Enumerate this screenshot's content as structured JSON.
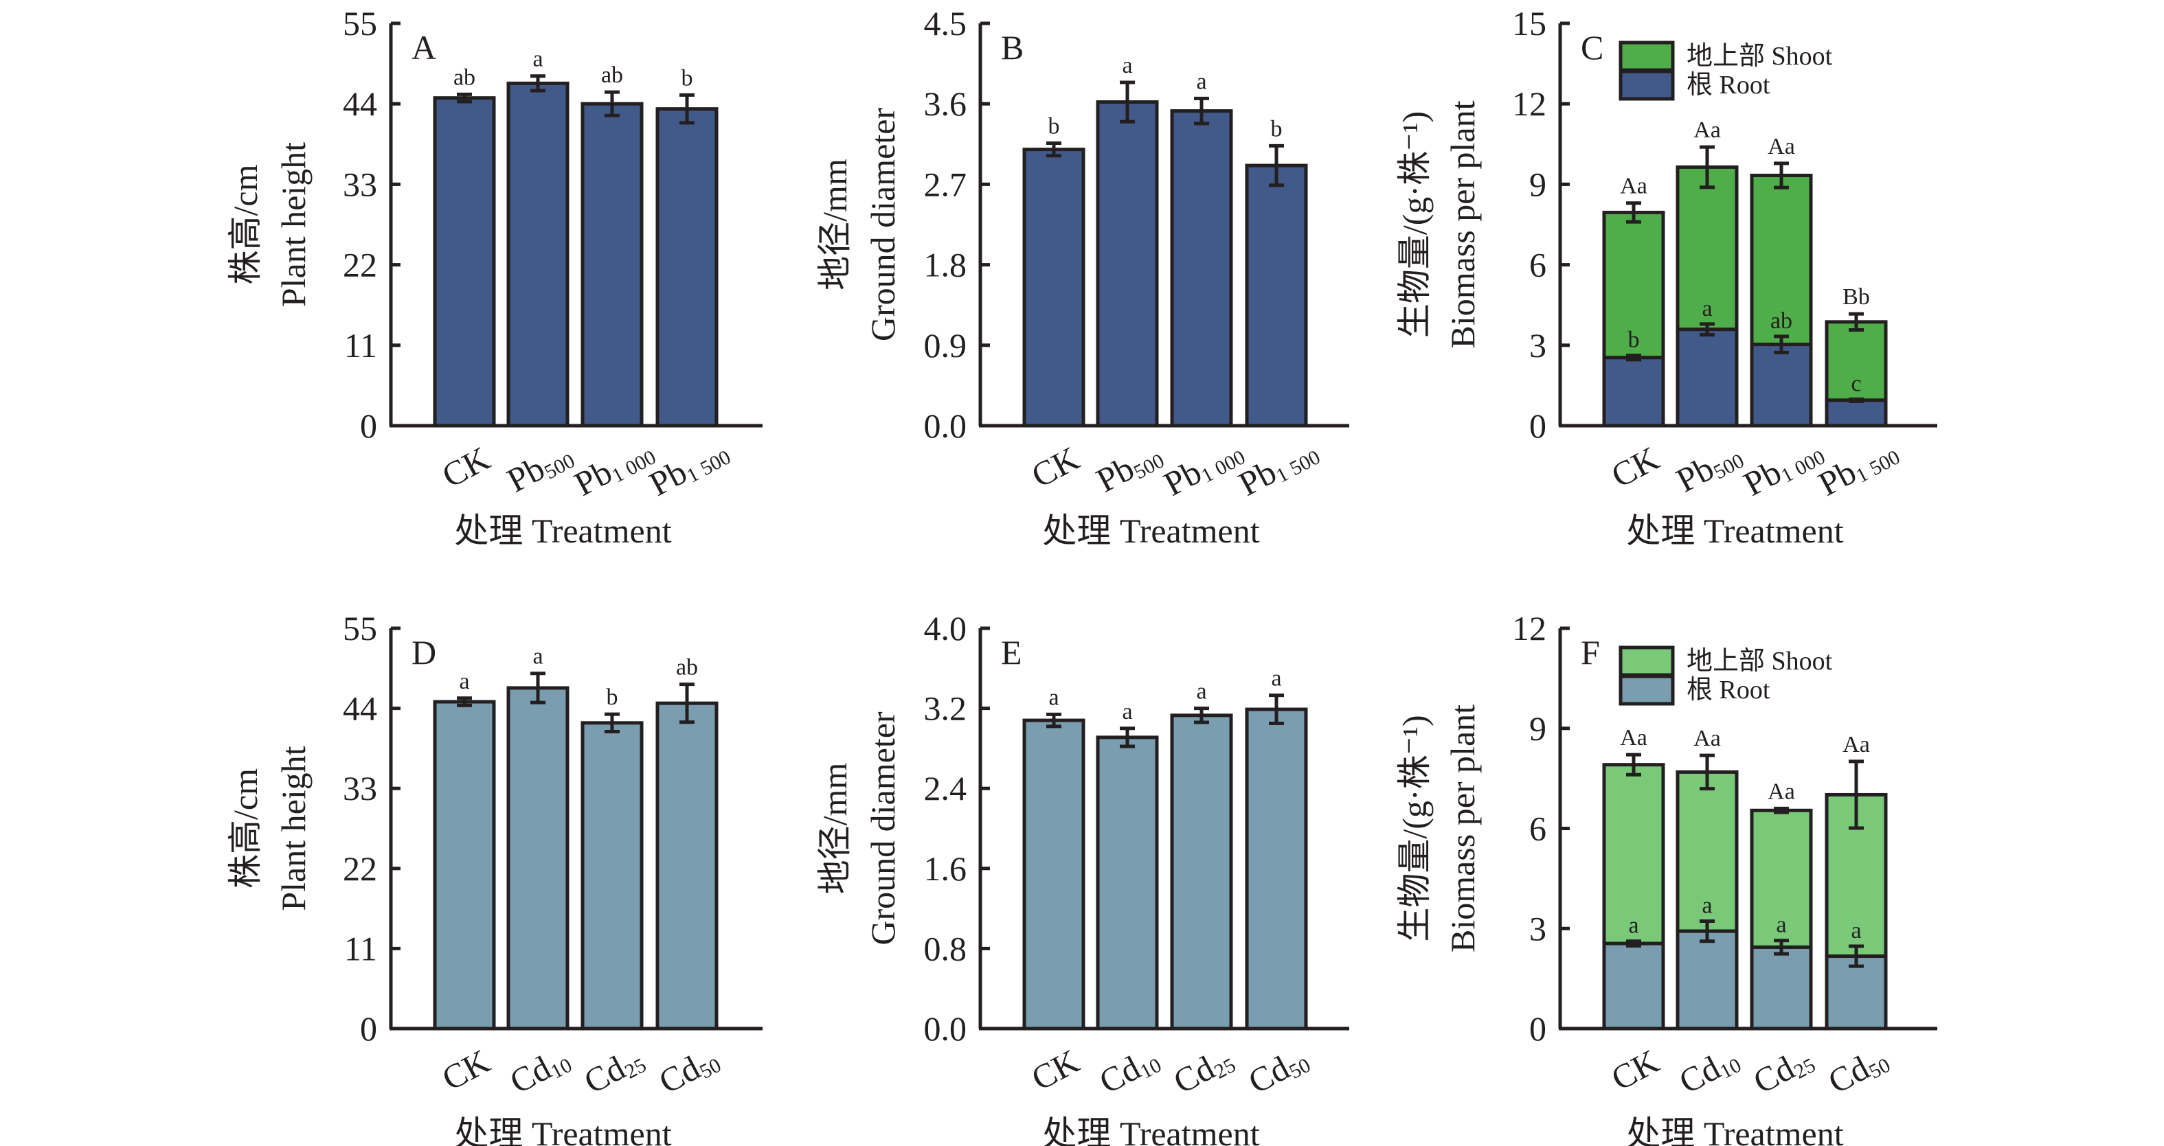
{
  "colors": {
    "pb_bar": "#425a8a",
    "cd_bar": "#7a9eaf",
    "pb_shoot": "#50ae4a",
    "cd_shoot": "#79c979",
    "ink": "#231f20"
  },
  "chart_data": [
    {
      "id": "A",
      "type": "bar",
      "panel_letter": "A",
      "categories": [
        {
          "base": "CK",
          "sub": ""
        },
        {
          "base": "Pb",
          "sub": "500"
        },
        {
          "base": "Pb",
          "sub": "1 000"
        },
        {
          "base": "Pb",
          "sub": "1 500"
        }
      ],
      "values": [
        44.8,
        46.8,
        44.0,
        43.3
      ],
      "errors": [
        0.5,
        1.0,
        1.6,
        1.9
      ],
      "significance": [
        "ab",
        "a",
        "ab",
        "b"
      ],
      "ylabel_cn": "株高/cm",
      "ylabel_en": "Plant height",
      "xlabel": "处理 Treatment",
      "ylim": [
        0,
        55
      ],
      "yticks": [
        "0",
        "11",
        "22",
        "33",
        "44",
        "55"
      ],
      "color_key": "pb_bar"
    },
    {
      "id": "B",
      "type": "bar",
      "panel_letter": "B",
      "categories": [
        {
          "base": "CK",
          "sub": ""
        },
        {
          "base": "Pb",
          "sub": "500"
        },
        {
          "base": "Pb",
          "sub": "1 000"
        },
        {
          "base": "Pb",
          "sub": "1 500"
        }
      ],
      "values": [
        3.09,
        3.62,
        3.52,
        2.91
      ],
      "errors": [
        0.07,
        0.22,
        0.14,
        0.22
      ],
      "significance": [
        "b",
        "a",
        "a",
        "b"
      ],
      "ylabel_cn": "地径/mm",
      "ylabel_en": "Ground diameter",
      "xlabel": "处理 Treatment",
      "ylim": [
        0,
        4.5
      ],
      "yticks": [
        "0.0",
        "0.9",
        "1.8",
        "2.7",
        "3.6",
        "4.5"
      ],
      "color_key": "pb_bar"
    },
    {
      "id": "C",
      "type": "stacked-bar",
      "panel_letter": "C",
      "categories": [
        {
          "base": "CK",
          "sub": ""
        },
        {
          "base": "Pb",
          "sub": "500"
        },
        {
          "base": "Pb",
          "sub": "1 000"
        },
        {
          "base": "Pb",
          "sub": "1 500"
        }
      ],
      "series": [
        {
          "name": "根 Root",
          "values": [
            2.54,
            3.59,
            3.03,
            0.95
          ],
          "errors": [
            0.08,
            0.2,
            0.3,
            0.04
          ],
          "significance": [
            "b",
            "a",
            "ab",
            "c"
          ],
          "color_key": "pb_bar"
        },
        {
          "name": "地上部 Shoot",
          "totals": [
            7.95,
            9.64,
            9.33,
            3.87
          ],
          "errors": [
            0.35,
            0.75,
            0.45,
            0.3
          ],
          "significance": [
            "Aa",
            "Aa",
            "Aa",
            "Bb"
          ],
          "color_key": "pb_shoot"
        }
      ],
      "legend": [
        {
          "label": "地上部 Shoot",
          "color_key": "pb_shoot"
        },
        {
          "label": "根 Root",
          "color_key": "pb_bar"
        }
      ],
      "legend_position": "top-left",
      "ylabel_cn": "生物量/(g·株⁻¹)",
      "ylabel_en": "Biomass per plant",
      "xlabel": "处理 Treatment",
      "ylim": [
        0,
        15
      ],
      "yticks": [
        "0",
        "3",
        "6",
        "9",
        "12",
        "15"
      ]
    },
    {
      "id": "D",
      "type": "bar",
      "panel_letter": "D",
      "categories": [
        {
          "base": "CK",
          "sub": ""
        },
        {
          "base": "Cd",
          "sub": "10"
        },
        {
          "base": "Cd",
          "sub": "25"
        },
        {
          "base": "Cd",
          "sub": "50"
        }
      ],
      "values": [
        44.9,
        46.8,
        42.0,
        44.7
      ],
      "errors": [
        0.5,
        2.0,
        1.2,
        2.6
      ],
      "significance": [
        "a",
        "a",
        "b",
        "ab"
      ],
      "ylabel_cn": "株高/cm",
      "ylabel_en": "Plant height",
      "xlabel": "处理 Treatment",
      "ylim": [
        0,
        55
      ],
      "yticks": [
        "0",
        "11",
        "22",
        "33",
        "44",
        "55"
      ],
      "color_key": "cd_bar"
    },
    {
      "id": "E",
      "type": "bar",
      "panel_letter": "E",
      "categories": [
        {
          "base": "CK",
          "sub": ""
        },
        {
          "base": "Cd",
          "sub": "10"
        },
        {
          "base": "Cd",
          "sub": "25"
        },
        {
          "base": "Cd",
          "sub": "50"
        }
      ],
      "values": [
        3.08,
        2.91,
        3.13,
        3.19
      ],
      "errors": [
        0.06,
        0.09,
        0.07,
        0.14
      ],
      "significance": [
        "a",
        "a",
        "a",
        "a"
      ],
      "ylabel_cn": "地径/mm",
      "ylabel_en": "Ground diameter",
      "xlabel": "处理 Treatment",
      "ylim": [
        0,
        4.0
      ],
      "yticks": [
        "0.0",
        "0.8",
        "1.6",
        "2.4",
        "3.2",
        "4.0"
      ],
      "color_key": "cd_bar"
    },
    {
      "id": "F",
      "type": "stacked-bar",
      "panel_letter": "F",
      "categories": [
        {
          "base": "CK",
          "sub": ""
        },
        {
          "base": "Cd",
          "sub": "10"
        },
        {
          "base": "Cd",
          "sub": "25"
        },
        {
          "base": "Cd",
          "sub": "50"
        }
      ],
      "series": [
        {
          "name": "根 Root",
          "values": [
            2.55,
            2.92,
            2.44,
            2.17
          ],
          "errors": [
            0.07,
            0.3,
            0.2,
            0.3
          ],
          "significance": [
            "a",
            "a",
            "a",
            "a"
          ],
          "color_key": "cd_bar"
        },
        {
          "name": "地上部 Shoot",
          "totals": [
            7.91,
            7.69,
            6.54,
            7.01
          ],
          "errors": [
            0.3,
            0.5,
            0.06,
            1.0
          ],
          "significance": [
            "Aa",
            "Aa",
            "Aa",
            "Aa"
          ],
          "color_key": "cd_shoot"
        }
      ],
      "legend": [
        {
          "label": "地上部 Shoot",
          "color_key": "cd_shoot"
        },
        {
          "label": "根 Root",
          "color_key": "cd_bar"
        }
      ],
      "legend_position": "top-left",
      "ylabel_cn": "生物量/(g·株⁻¹)",
      "ylabel_en": "Biomass per plant",
      "xlabel": "处理 Treatment",
      "ylim": [
        0,
        12
      ],
      "yticks": [
        "0",
        "3",
        "6",
        "9",
        "12"
      ]
    }
  ]
}
